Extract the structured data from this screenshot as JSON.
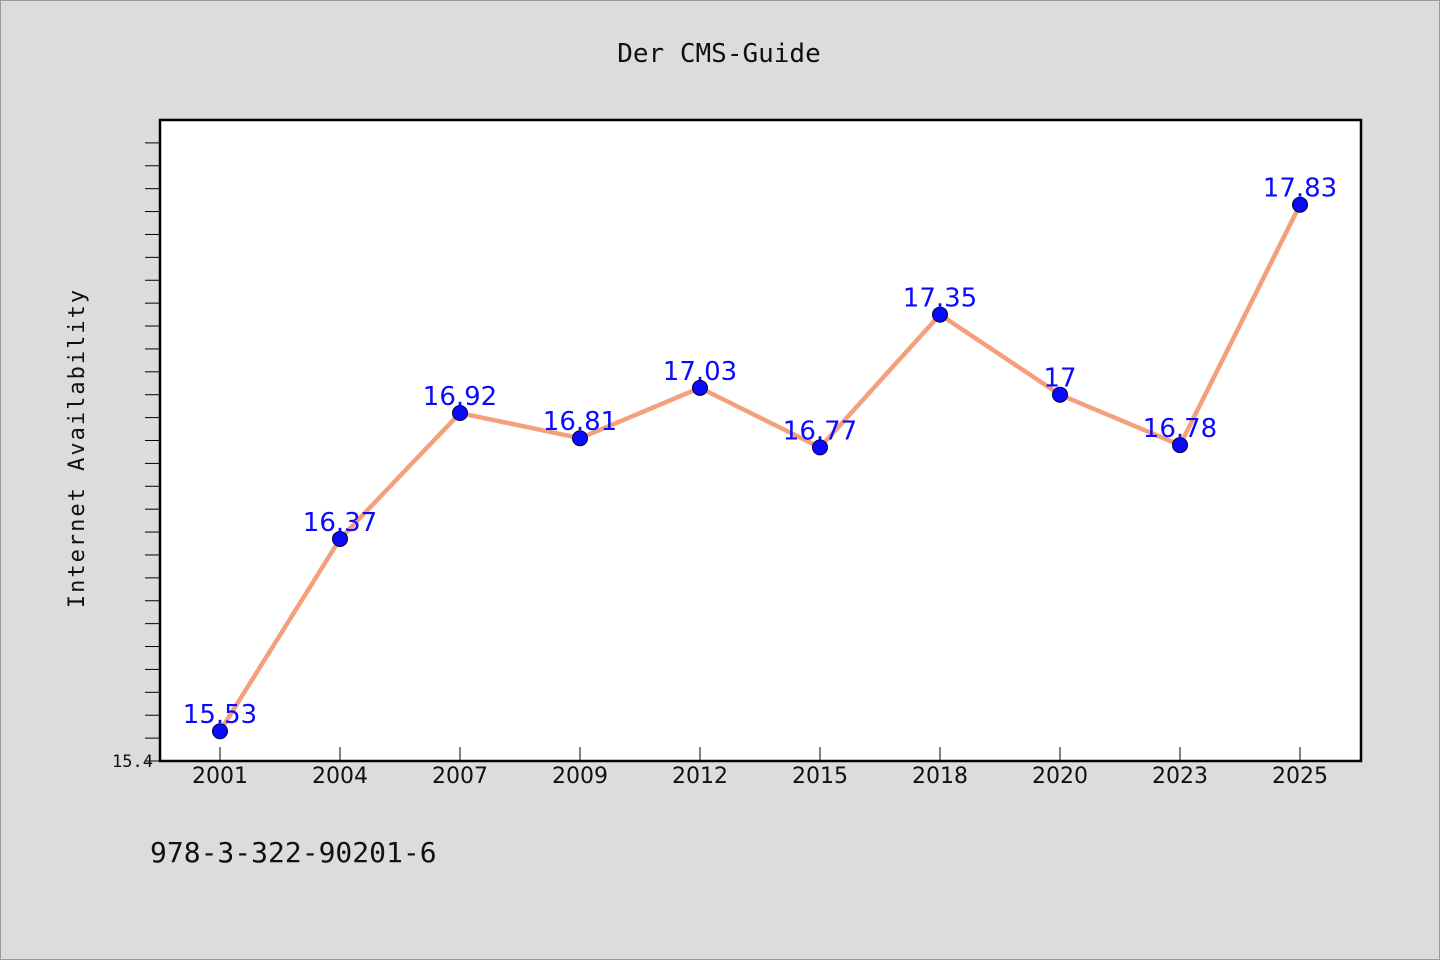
{
  "chart_data": {
    "type": "line",
    "title": "Der CMS-Guide",
    "xlabel": "",
    "ylabel": "Internet Availability",
    "categories": [
      "2001",
      "2004",
      "2007",
      "2009",
      "2012",
      "2015",
      "2018",
      "2020",
      "2023",
      "2025"
    ],
    "series": [
      {
        "values": [
          15.53,
          16.37,
          16.92,
          16.81,
          17.03,
          16.77,
          17.35,
          17,
          16.78,
          17.83
        ],
        "labels": [
          "15.53",
          "16.37",
          "16.92",
          "16.81",
          "17.03",
          "16.77",
          "17.35",
          "17",
          "16.78",
          "17.83"
        ]
      }
    ],
    "ylim": [
      15.4,
      18.2
    ],
    "y_tick_labels": [
      "15.4"
    ],
    "grid": false,
    "legend": "none",
    "line_color": "#f4a07c",
    "marker_color": "#0a0aff",
    "label_color": "#0a0aff"
  },
  "footer": {
    "isbn": "978-3-322-90201-6"
  }
}
